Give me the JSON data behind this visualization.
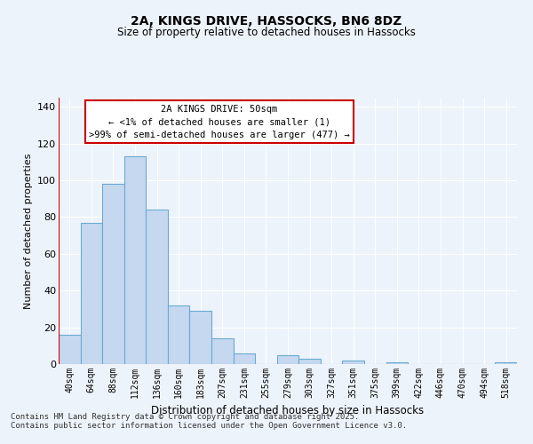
{
  "title": "2A, KINGS DRIVE, HASSOCKS, BN6 8DZ",
  "subtitle": "Size of property relative to detached houses in Hassocks",
  "xlabel": "Distribution of detached houses by size in Hassocks",
  "ylabel": "Number of detached properties",
  "categories": [
    "40sqm",
    "64sqm",
    "88sqm",
    "112sqm",
    "136sqm",
    "160sqm",
    "183sqm",
    "207sqm",
    "231sqm",
    "255sqm",
    "279sqm",
    "303sqm",
    "327sqm",
    "351sqm",
    "375sqm",
    "399sqm",
    "422sqm",
    "446sqm",
    "470sqm",
    "494sqm",
    "518sqm"
  ],
  "values": [
    16,
    77,
    98,
    113,
    84,
    32,
    29,
    14,
    6,
    0,
    5,
    3,
    0,
    2,
    0,
    1,
    0,
    0,
    0,
    0,
    1
  ],
  "bar_color": "#c5d8f0",
  "bar_edge_color": "#6aabd2",
  "vline_color": "#cc0000",
  "annotation_text": "2A KINGS DRIVE: 50sqm\n← <1% of detached houses are smaller (1)\n>99% of semi-detached houses are larger (477) →",
  "annotation_box_color": "#ffffff",
  "annotation_box_edge": "#cc0000",
  "ylim": [
    0,
    145
  ],
  "yticks": [
    0,
    20,
    40,
    60,
    80,
    100,
    120,
    140
  ],
  "bg_color": "#edf3fa",
  "grid_color": "#ffffff",
  "footer1": "Contains HM Land Registry data © Crown copyright and database right 2025.",
  "footer2": "Contains public sector information licensed under the Open Government Licence v3.0."
}
